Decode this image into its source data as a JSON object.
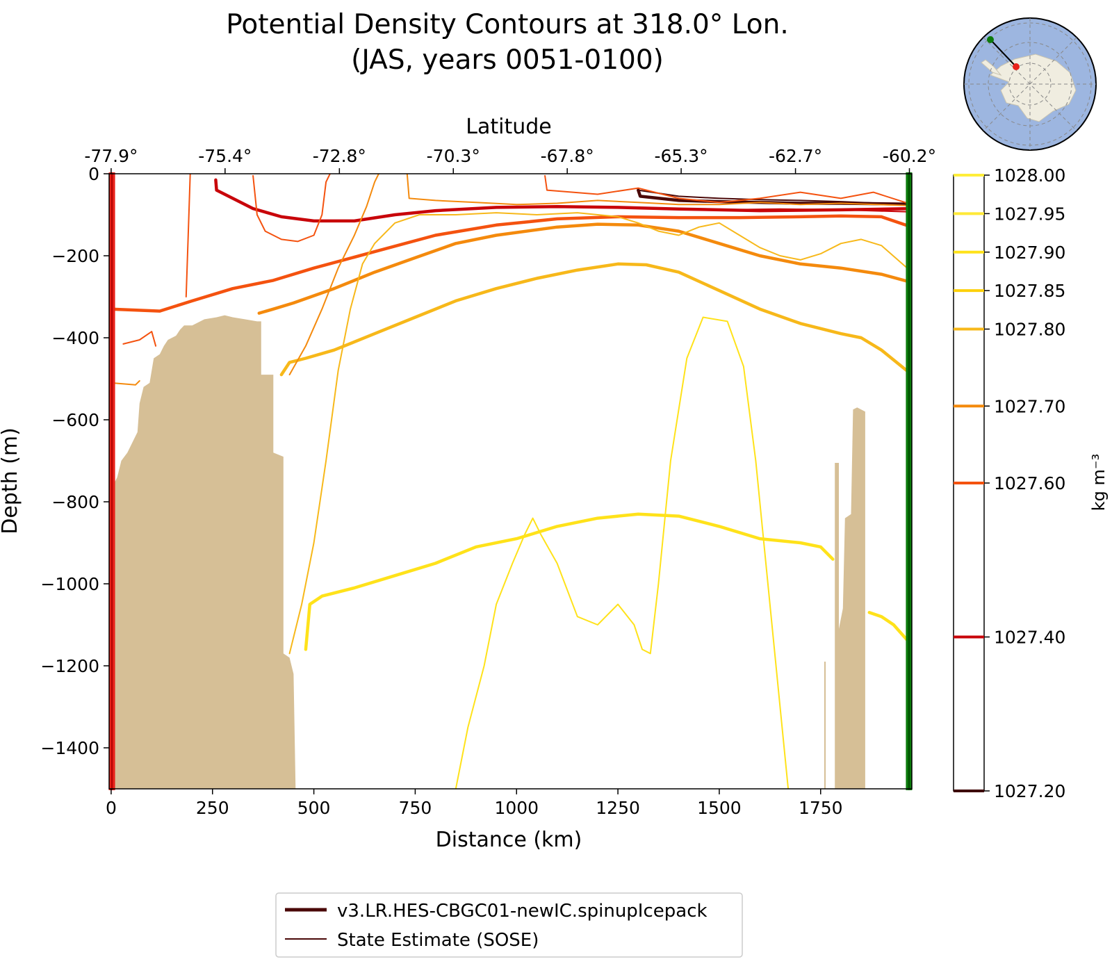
{
  "title_line1": "Potential Density Contours at 318.0° Lon.",
  "title_line2": "(JAS, years 0051-0100)",
  "chart_data": {
    "type": "line",
    "xlabel": "Distance (km)",
    "ylabel": "Depth (m)",
    "top_xlabel": "Latitude",
    "xlim": [
      -5,
      1975
    ],
    "ylim": [
      -1500,
      0
    ],
    "xticks": [
      0,
      250,
      500,
      750,
      1000,
      1250,
      1500,
      1750
    ],
    "xtick_labels": [
      "0",
      "250",
      "500",
      "750",
      "1000",
      "1250",
      "1500",
      "1750"
    ],
    "yticks": [
      0,
      -200,
      -400,
      -600,
      -800,
      -1000,
      -1200,
      -1400
    ],
    "ytick_labels": [
      "0",
      "−200",
      "−400",
      "−600",
      "−800",
      "−1000",
      "−1200",
      "−1400"
    ],
    "top_ticks": [
      0,
      281,
      563,
      844,
      1125,
      1406,
      1688,
      1969
    ],
    "top_tick_labels": [
      "-77.9°",
      "-75.4°",
      "-72.8°",
      "-70.3°",
      "-67.8°",
      "-65.3°",
      "-62.7°",
      "-60.2°"
    ],
    "grid": false,
    "section_start_marker_color": "#e8221a",
    "section_end_marker_color": "#0b7a0b",
    "bathymetry": {
      "color": "#d6bf96",
      "points": [
        [
          5,
          -1500
        ],
        [
          5,
          -760
        ],
        [
          15,
          -740
        ],
        [
          25,
          -700
        ],
        [
          40,
          -680
        ],
        [
          55,
          -650
        ],
        [
          65,
          -630
        ],
        [
          70,
          -560
        ],
        [
          80,
          -520
        ],
        [
          95,
          -510
        ],
        [
          105,
          -450
        ],
        [
          120,
          -440
        ],
        [
          130,
          -420
        ],
        [
          140,
          -405
        ],
        [
          160,
          -395
        ],
        [
          170,
          -380
        ],
        [
          180,
          -370
        ],
        [
          200,
          -370
        ],
        [
          230,
          -355
        ],
        [
          260,
          -350
        ],
        [
          280,
          -345
        ],
        [
          300,
          -350
        ],
        [
          330,
          -355
        ],
        [
          360,
          -360
        ],
        [
          370,
          -360
        ],
        [
          370,
          -490
        ],
        [
          400,
          -490
        ],
        [
          400,
          -680
        ],
        [
          425,
          -690
        ],
        [
          425,
          -1170
        ],
        [
          440,
          -1180
        ],
        [
          450,
          -1220
        ],
        [
          455,
          -1500
        ]
      ]
    },
    "bathymetry_right": {
      "color": "#d6bf96",
      "points": [
        [
          1785,
          -1500
        ],
        [
          1785,
          -705
        ],
        [
          1795,
          -705
        ],
        [
          1795,
          -1110
        ],
        [
          1805,
          -1060
        ],
        [
          1810,
          -840
        ],
        [
          1825,
          -830
        ],
        [
          1830,
          -575
        ],
        [
          1840,
          -570
        ],
        [
          1850,
          -575
        ],
        [
          1860,
          -580
        ],
        [
          1860,
          -1500
        ]
      ]
    },
    "colorbar": {
      "label": "kg m⁻³",
      "ticks": [
        "1028.00",
        "1027.95",
        "1027.90",
        "1027.85",
        "1027.80",
        "1027.70",
        "1027.60",
        "1027.40",
        "1027.20"
      ],
      "tick_values": [
        1028.0,
        1027.95,
        1027.9,
        1027.85,
        1027.8,
        1027.7,
        1027.6,
        1027.4,
        1027.2
      ],
      "tick_colors": [
        "#ffee3a",
        "#ffe938",
        "#ffe21a",
        "#fdd10a",
        "#f7b81a",
        "#f48a0d",
        "#f4520f",
        "#c8050a",
        "#3d0000"
      ],
      "range": [
        1027.2,
        1028.0
      ]
    },
    "series": [
      {
        "name": "v3.LR.HES-CBGC01-newIC.spinupIcepack",
        "level": 1027.2,
        "color": "#4a0808",
        "model": true,
        "points": [
          [
            1300,
            -40
          ],
          [
            1305,
            -55
          ],
          [
            1400,
            -65
          ],
          [
            1500,
            -68
          ],
          [
            1600,
            -70
          ],
          [
            1700,
            -72
          ],
          [
            1800,
            -72
          ],
          [
            1975,
            -74
          ]
        ]
      },
      {
        "level": 1027.4,
        "color": "#c8050a",
        "model": true,
        "points": [
          [
            258,
            -15
          ],
          [
            260,
            -40
          ],
          [
            300,
            -60
          ],
          [
            350,
            -85
          ],
          [
            420,
            -105
          ],
          [
            500,
            -115
          ],
          [
            600,
            -115
          ],
          [
            700,
            -100
          ],
          [
            800,
            -90
          ],
          [
            950,
            -82
          ],
          [
            1100,
            -80
          ],
          [
            1250,
            -82
          ],
          [
            1400,
            -86
          ],
          [
            1600,
            -90
          ],
          [
            1800,
            -88
          ],
          [
            1975,
            -85
          ]
        ]
      },
      {
        "level": 1027.6,
        "color": "#f4520f",
        "model": true,
        "points": [
          [
            0,
            -330
          ],
          [
            120,
            -335
          ],
          [
            200,
            -310
          ],
          [
            300,
            -280
          ],
          [
            400,
            -260
          ],
          [
            500,
            -230
          ],
          [
            650,
            -190
          ],
          [
            800,
            -150
          ],
          [
            950,
            -125
          ],
          [
            1100,
            -110
          ],
          [
            1250,
            -105
          ],
          [
            1400,
            -107
          ],
          [
            1550,
            -107
          ],
          [
            1700,
            -105
          ],
          [
            1800,
            -103
          ],
          [
            1900,
            -105
          ],
          [
            1975,
            -130
          ]
        ]
      },
      {
        "level": 1027.7,
        "color": "#f48a0d",
        "model": true,
        "points": [
          [
            365,
            -340
          ],
          [
            400,
            -330
          ],
          [
            450,
            -315
          ],
          [
            550,
            -280
          ],
          [
            650,
            -240
          ],
          [
            750,
            -205
          ],
          [
            850,
            -170
          ],
          [
            950,
            -150
          ],
          [
            1100,
            -130
          ],
          [
            1200,
            -123
          ],
          [
            1300,
            -125
          ],
          [
            1400,
            -140
          ],
          [
            1500,
            -170
          ],
          [
            1600,
            -200
          ],
          [
            1700,
            -220
          ],
          [
            1800,
            -230
          ],
          [
            1900,
            -245
          ],
          [
            1975,
            -265
          ]
        ]
      },
      {
        "level": 1027.8,
        "color": "#f7b81a",
        "model": true,
        "points": [
          [
            420,
            -490
          ],
          [
            440,
            -460
          ],
          [
            480,
            -450
          ],
          [
            550,
            -430
          ],
          [
            650,
            -390
          ],
          [
            750,
            -350
          ],
          [
            850,
            -310
          ],
          [
            950,
            -280
          ],
          [
            1050,
            -255
          ],
          [
            1150,
            -235
          ],
          [
            1250,
            -220
          ],
          [
            1320,
            -222
          ],
          [
            1400,
            -240
          ],
          [
            1500,
            -285
          ],
          [
            1600,
            -330
          ],
          [
            1700,
            -365
          ],
          [
            1800,
            -390
          ],
          [
            1850,
            -400
          ],
          [
            1900,
            -430
          ],
          [
            1975,
            -490
          ]
        ]
      },
      {
        "level": 1027.9,
        "color": "#ffe21a",
        "model": true,
        "points": [
          [
            480,
            -1160
          ],
          [
            490,
            -1050
          ],
          [
            520,
            -1030
          ],
          [
            600,
            -1010
          ],
          [
            700,
            -980
          ],
          [
            800,
            -950
          ],
          [
            900,
            -910
          ],
          [
            1000,
            -890
          ],
          [
            1100,
            -860
          ],
          [
            1200,
            -840
          ],
          [
            1300,
            -830
          ],
          [
            1400,
            -835
          ],
          [
            1500,
            -860
          ],
          [
            1600,
            -890
          ],
          [
            1700,
            -900
          ],
          [
            1750,
            -910
          ],
          [
            1780,
            -940
          ]
        ]
      },
      {
        "level": 1027.9,
        "color": "#ffe21a",
        "model": true,
        "points": [
          [
            1870,
            -1070
          ],
          [
            1900,
            -1080
          ],
          [
            1930,
            -1100
          ],
          [
            1975,
            -1150
          ]
        ]
      },
      {
        "name": "State Estimate (SOSE)",
        "level": 1027.2,
        "color": "#4a0808",
        "model": false,
        "points": [
          [
            1300,
            -40
          ],
          [
            1400,
            -55
          ],
          [
            1500,
            -60
          ],
          [
            1600,
            -63
          ],
          [
            1700,
            -65
          ],
          [
            1800,
            -68
          ],
          [
            1975,
            -75
          ]
        ]
      },
      {
        "level": 1027.4,
        "color": "#c8050a",
        "model": false,
        "points": [
          [
            1350,
            -85
          ],
          [
            1500,
            -88
          ],
          [
            1650,
            -86
          ],
          [
            1800,
            -88
          ],
          [
            1975,
            -93
          ]
        ]
      },
      {
        "level": 1027.6,
        "color": "#f4520f",
        "model": false,
        "points": [
          [
            185,
            -300
          ],
          [
            190,
            -150
          ],
          [
            195,
            0
          ]
        ]
      },
      {
        "level": 1027.6,
        "color": "#f4520f",
        "model": false,
        "points": [
          [
            350,
            -5
          ],
          [
            360,
            -100
          ],
          [
            380,
            -140
          ],
          [
            420,
            -160
          ],
          [
            460,
            -165
          ],
          [
            500,
            -150
          ],
          [
            520,
            -100
          ],
          [
            530,
            -20
          ],
          [
            540,
            0
          ]
        ]
      },
      {
        "level": 1027.6,
        "color": "#f4520f",
        "model": false,
        "points": [
          [
            30,
            -415
          ],
          [
            70,
            -405
          ],
          [
            100,
            -385
          ],
          [
            110,
            -420
          ]
        ]
      },
      {
        "level": 1027.6,
        "color": "#f4520f",
        "model": false,
        "points": [
          [
            1070,
            -5
          ],
          [
            1075,
            -40
          ],
          [
            1200,
            -50
          ],
          [
            1300,
            -35
          ],
          [
            1400,
            -60
          ],
          [
            1500,
            -70
          ],
          [
            1600,
            -60
          ],
          [
            1700,
            -45
          ],
          [
            1800,
            -60
          ],
          [
            1880,
            -45
          ],
          [
            1975,
            -75
          ]
        ]
      },
      {
        "level": 1027.7,
        "color": "#f48a0d",
        "model": false,
        "points": [
          [
            0,
            -510
          ],
          [
            60,
            -515
          ],
          [
            70,
            -505
          ]
        ]
      },
      {
        "level": 1027.7,
        "color": "#f48a0d",
        "model": false,
        "points": [
          [
            440,
            -490
          ],
          [
            480,
            -420
          ],
          [
            520,
            -330
          ],
          [
            560,
            -230
          ],
          [
            600,
            -150
          ],
          [
            630,
            -80
          ],
          [
            650,
            -20
          ],
          [
            660,
            0
          ]
        ]
      },
      {
        "level": 1027.7,
        "color": "#f48a0d",
        "model": false,
        "points": [
          [
            730,
            0
          ],
          [
            735,
            -60
          ],
          [
            800,
            -65
          ],
          [
            900,
            -70
          ],
          [
            1000,
            -75
          ],
          [
            1100,
            -72
          ],
          [
            1200,
            -65
          ],
          [
            1300,
            -70
          ],
          [
            1400,
            -75
          ],
          [
            1500,
            -75
          ],
          [
            1600,
            -70
          ],
          [
            1700,
            -75
          ],
          [
            1800,
            -72
          ],
          [
            1975,
            -78
          ]
        ]
      },
      {
        "level": 1027.8,
        "color": "#f7b81a",
        "model": false,
        "points": [
          [
            440,
            -1170
          ],
          [
            470,
            -1050
          ],
          [
            500,
            -900
          ],
          [
            530,
            -700
          ],
          [
            560,
            -480
          ],
          [
            590,
            -330
          ],
          [
            620,
            -220
          ],
          [
            650,
            -170
          ],
          [
            700,
            -120
          ],
          [
            760,
            -100
          ],
          [
            850,
            -100
          ],
          [
            950,
            -95
          ],
          [
            1050,
            -100
          ],
          [
            1150,
            -95
          ],
          [
            1250,
            -105
          ],
          [
            1300,
            -120
          ],
          [
            1350,
            -140
          ],
          [
            1400,
            -150
          ],
          [
            1450,
            -130
          ],
          [
            1500,
            -120
          ],
          [
            1550,
            -150
          ],
          [
            1600,
            -180
          ],
          [
            1650,
            -200
          ],
          [
            1700,
            -210
          ],
          [
            1750,
            -195
          ],
          [
            1800,
            -170
          ],
          [
            1850,
            -160
          ],
          [
            1900,
            -175
          ],
          [
            1975,
            -240
          ]
        ]
      },
      {
        "level": 1027.9,
        "color": "#ffe21a",
        "model": false,
        "points": [
          [
            850,
            -1500
          ],
          [
            880,
            -1350
          ],
          [
            920,
            -1200
          ],
          [
            950,
            -1050
          ],
          [
            990,
            -950
          ],
          [
            1020,
            -880
          ],
          [
            1040,
            -840
          ],
          [
            1060,
            -880
          ],
          [
            1100,
            -950
          ],
          [
            1150,
            -1080
          ],
          [
            1200,
            -1100
          ],
          [
            1250,
            -1050
          ],
          [
            1290,
            -1100
          ],
          [
            1310,
            -1160
          ],
          [
            1330,
            -1170
          ],
          [
            1350,
            -1000
          ],
          [
            1380,
            -700
          ],
          [
            1420,
            -450
          ],
          [
            1460,
            -350
          ],
          [
            1520,
            -360
          ],
          [
            1560,
            -470
          ],
          [
            1590,
            -700
          ],
          [
            1620,
            -1000
          ],
          [
            1650,
            -1300
          ],
          [
            1670,
            -1500
          ]
        ]
      }
    ],
    "legend": {
      "placement": "lower-center"
    }
  }
}
